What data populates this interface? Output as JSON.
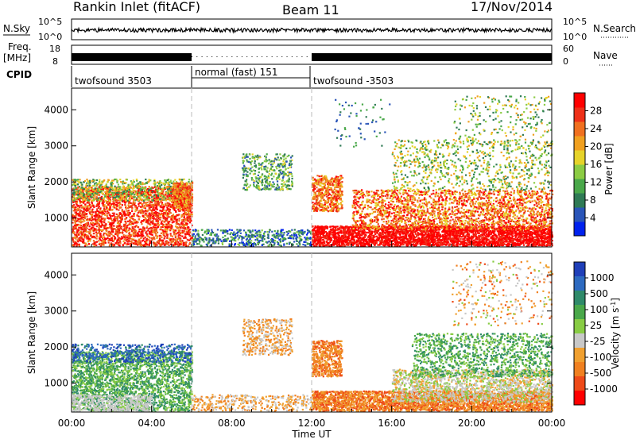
{
  "header": {
    "station": "Rankin Inlet (fitACF)",
    "beam": "Beam 11",
    "date": "17/Nov/2014"
  },
  "top_panels": {
    "nsky_label": "N.Sky",
    "nsky_ticks": [
      "10^5",
      "10^0"
    ],
    "nsearch_label": "N.Search",
    "freq_label_1": "Freq.",
    "freq_label_2": "[MHz]",
    "freq_ticks": [
      "18",
      "8"
    ],
    "nave_label": "Nave",
    "nave_ticks": [
      "60",
      "0"
    ],
    "cpid_label": "CPID",
    "cpid_segments": [
      {
        "label": "twofsound 3503",
        "start_h": 0,
        "end_h": 6
      },
      {
        "label": "normal (fast) 151",
        "start_h": 6,
        "end_h": 12
      },
      {
        "label": "twofsound -3503",
        "start_h": 12,
        "end_h": 24
      }
    ]
  },
  "chart_data": [
    {
      "type": "heatmap",
      "name": "power",
      "ylabel": "Slant Range [km]",
      "xlabel": "",
      "x_ticks": [
        "00:00",
        "04:00",
        "08:00",
        "12:00",
        "16:00",
        "20:00",
        "00:00"
      ],
      "xlim_hours": [
        0,
        24
      ],
      "y_ticks": [
        1000,
        2000,
        3000,
        4000
      ],
      "ylim_km": [
        200,
        4600
      ],
      "colorbar": {
        "label": "Power [dB]",
        "ticks": [
          "4",
          "8",
          "12",
          "16",
          "20",
          "24",
          "28"
        ],
        "colors": [
          "#0022ee",
          "#2a55b8",
          "#2f7a55",
          "#4aa84a",
          "#8ccc44",
          "#e6d32a",
          "#f0a020",
          "#f07020",
          "#ee3018",
          "#ff0000"
        ]
      }
    },
    {
      "type": "heatmap",
      "name": "velocity",
      "ylabel": "Slant Range [km]",
      "xlabel": "Time UT",
      "x_ticks": [
        "00:00",
        "04:00",
        "08:00",
        "12:00",
        "16:00",
        "20:00",
        "00:00"
      ],
      "xlim_hours": [
        0,
        24
      ],
      "y_ticks": [
        1000,
        2000,
        3000,
        4000
      ],
      "ylim_km": [
        200,
        4600
      ],
      "colorbar": {
        "label": "Velocity [m s^-1]",
        "ticks": [
          "1000",
          "500",
          "100",
          "25",
          "-25",
          "-100",
          "-500",
          "-1000"
        ],
        "colors": [
          "#1f3fb8",
          "#2d6ac0",
          "#2f8a6a",
          "#4aa84a",
          "#88cc44",
          "#c8c8c8",
          "#f0a030",
          "#f08020",
          "#ee4a18",
          "#ff0000"
        ]
      }
    }
  ]
}
